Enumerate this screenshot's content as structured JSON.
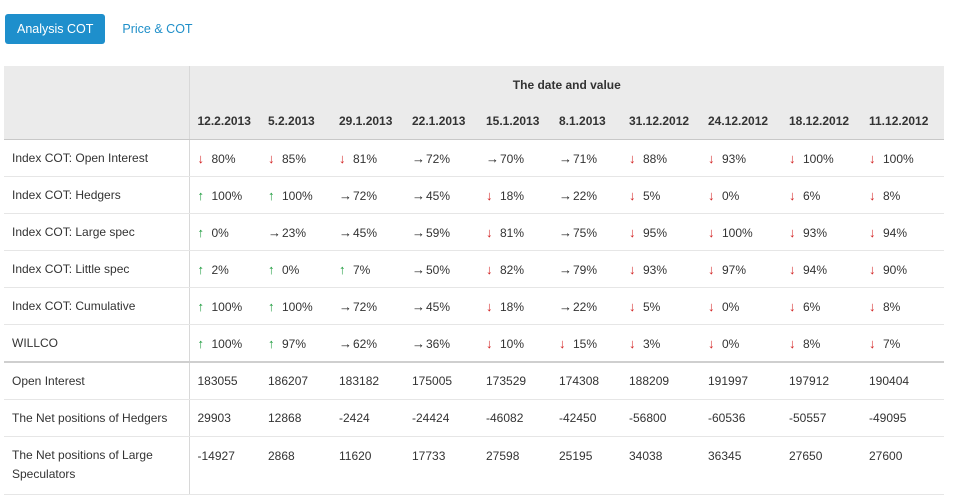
{
  "tabs": [
    {
      "label": "Analysis COT",
      "active": true
    },
    {
      "label": "Price & COT",
      "active": false
    }
  ],
  "table": {
    "header_title": "The date and value",
    "dates": [
      "12.2.2013",
      "5.2.2013",
      "29.1.2013",
      "22.1.2013",
      "15.1.2013",
      "8.1.2013",
      "31.12.2012",
      "24.12.2012",
      "18.12.2012",
      "11.12.2012"
    ],
    "index_rows": [
      {
        "label": "Index COT: Open Interest",
        "cells": [
          {
            "dir": "down",
            "value": "80%"
          },
          {
            "dir": "down",
            "value": "85%"
          },
          {
            "dir": "down",
            "value": "81%"
          },
          {
            "dir": "right",
            "value": "72%"
          },
          {
            "dir": "right",
            "value": "70%"
          },
          {
            "dir": "right",
            "value": "71%"
          },
          {
            "dir": "down",
            "value": "88%"
          },
          {
            "dir": "down",
            "value": "93%"
          },
          {
            "dir": "down",
            "value": "100%"
          },
          {
            "dir": "down",
            "value": "100%"
          }
        ]
      },
      {
        "label": "Index COT: Hedgers",
        "cells": [
          {
            "dir": "up",
            "value": "100%"
          },
          {
            "dir": "up",
            "value": "100%"
          },
          {
            "dir": "right",
            "value": "72%"
          },
          {
            "dir": "right",
            "value": "45%"
          },
          {
            "dir": "down",
            "value": "18%"
          },
          {
            "dir": "right",
            "value": "22%"
          },
          {
            "dir": "down",
            "value": "5%"
          },
          {
            "dir": "down",
            "value": "0%"
          },
          {
            "dir": "down",
            "value": "6%"
          },
          {
            "dir": "down",
            "value": "8%"
          }
        ]
      },
      {
        "label": "Index COT: Large spec",
        "cells": [
          {
            "dir": "up",
            "value": "0%"
          },
          {
            "dir": "right",
            "value": "23%"
          },
          {
            "dir": "right",
            "value": "45%"
          },
          {
            "dir": "right",
            "value": "59%"
          },
          {
            "dir": "down",
            "value": "81%"
          },
          {
            "dir": "right",
            "value": "75%"
          },
          {
            "dir": "down",
            "value": "95%"
          },
          {
            "dir": "down",
            "value": "100%"
          },
          {
            "dir": "down",
            "value": "93%"
          },
          {
            "dir": "down",
            "value": "94%"
          }
        ]
      },
      {
        "label": "Index COT: Little spec",
        "cells": [
          {
            "dir": "up",
            "value": "2%"
          },
          {
            "dir": "up",
            "value": "0%"
          },
          {
            "dir": "up",
            "value": "7%"
          },
          {
            "dir": "right",
            "value": "50%"
          },
          {
            "dir": "down",
            "value": "82%"
          },
          {
            "dir": "right",
            "value": "79%"
          },
          {
            "dir": "down",
            "value": "93%"
          },
          {
            "dir": "down",
            "value": "97%"
          },
          {
            "dir": "down",
            "value": "94%"
          },
          {
            "dir": "down",
            "value": "90%"
          }
        ]
      },
      {
        "label": "Index COT: Cumulative",
        "cells": [
          {
            "dir": "up",
            "value": "100%"
          },
          {
            "dir": "up",
            "value": "100%"
          },
          {
            "dir": "right",
            "value": "72%"
          },
          {
            "dir": "right",
            "value": "45%"
          },
          {
            "dir": "down",
            "value": "18%"
          },
          {
            "dir": "right",
            "value": "22%"
          },
          {
            "dir": "down",
            "value": "5%"
          },
          {
            "dir": "down",
            "value": "0%"
          },
          {
            "dir": "down",
            "value": "6%"
          },
          {
            "dir": "down",
            "value": "8%"
          }
        ]
      },
      {
        "label": "WILLCO",
        "cells": [
          {
            "dir": "up",
            "value": "100%"
          },
          {
            "dir": "up",
            "value": "97%"
          },
          {
            "dir": "right",
            "value": "62%"
          },
          {
            "dir": "right",
            "value": "36%"
          },
          {
            "dir": "down",
            "value": "10%"
          },
          {
            "dir": "down",
            "value": "15%"
          },
          {
            "dir": "down",
            "value": "3%"
          },
          {
            "dir": "down",
            "value": "0%"
          },
          {
            "dir": "down",
            "value": "8%"
          },
          {
            "dir": "down",
            "value": "7%"
          }
        ]
      }
    ],
    "value_rows": [
      {
        "label": "Open Interest",
        "values": [
          "183055",
          "186207",
          "183182",
          "175005",
          "173529",
          "174308",
          "188209",
          "191997",
          "197912",
          "190404"
        ]
      },
      {
        "label": "The Net positions of Hedgers",
        "values": [
          "29903",
          "12868",
          "-2424",
          "-24424",
          "-46082",
          "-42450",
          "-56800",
          "-60536",
          "-50557",
          "-49095"
        ]
      },
      {
        "label": "The Net positions of Large Speculators",
        "values": [
          "-14927",
          "2868",
          "11620",
          "17733",
          "27598",
          "25195",
          "34038",
          "36345",
          "27650",
          "27600"
        ]
      }
    ]
  },
  "icons": {
    "up": "arrow-up-icon",
    "down": "arrow-down-icon",
    "right": "arrow-right-icon"
  },
  "colors": {
    "accent": "#1e8fcc",
    "up": "#1a9a3a",
    "down": "#d21f1f",
    "neutral": "#222222"
  }
}
